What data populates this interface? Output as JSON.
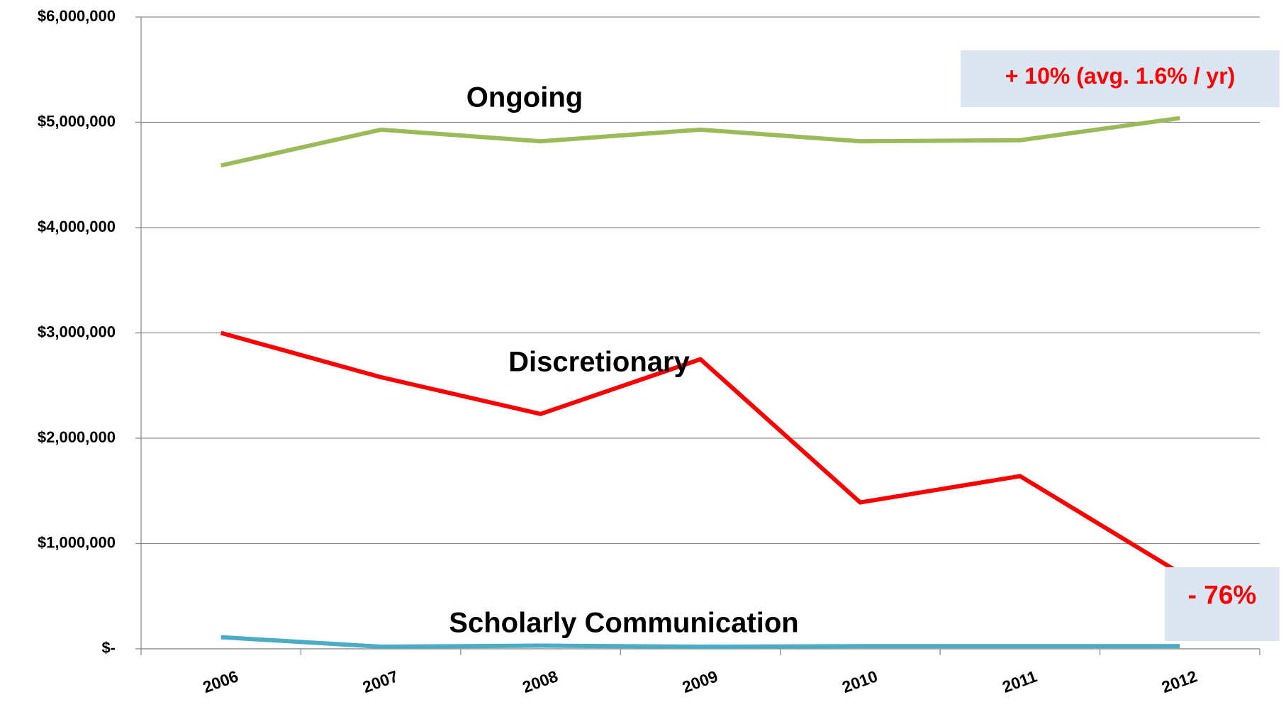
{
  "chart_data": {
    "type": "line",
    "categories": [
      "2006",
      "2007",
      "2008",
      "2009",
      "2010",
      "2011",
      "2012"
    ],
    "series": [
      {
        "name": "Ongoing",
        "color": "#9bbb59",
        "values": [
          4590000,
          4930000,
          4820000,
          4930000,
          4820000,
          4830000,
          5040000
        ]
      },
      {
        "name": "Discretionary",
        "color": "#ff0000",
        "values": [
          3000000,
          2580000,
          2230000,
          2750000,
          1390000,
          1640000,
          720000
        ]
      },
      {
        "name": "Scholarly Communication",
        "color": "#4bacc6",
        "values": [
          110000,
          20000,
          30000,
          20000,
          25000,
          25000,
          25000
        ]
      }
    ],
    "ylim": [
      0,
      6000000
    ],
    "yticks": [
      {
        "value": 0,
        "label": "$-"
      },
      {
        "value": 1000000,
        "label": "$1,000,000"
      },
      {
        "value": 2000000,
        "label": "$2,000,000"
      },
      {
        "value": 3000000,
        "label": "$3,000,000"
      },
      {
        "value": 4000000,
        "label": "$4,000,000"
      },
      {
        "value": 5000000,
        "label": "$5,000,000"
      },
      {
        "value": 6000000,
        "label": "$6,000,000"
      }
    ],
    "grid": true,
    "annotations": [
      "+ 10% (avg. 1.6% / yr)",
      "- 76%"
    ]
  }
}
